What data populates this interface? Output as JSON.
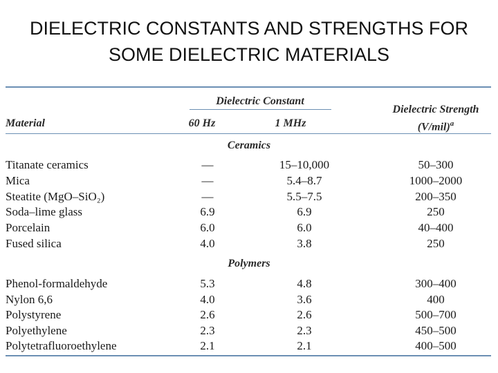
{
  "title": {
    "line1": "DIELECTRIC CONSTANTS AND STRENGTHS FOR",
    "line2": "SOME DIELECTRIC MATERIALS"
  },
  "table": {
    "group_header": "Dielectric Constant",
    "col_material": "Material",
    "col_60hz": "60 Hz",
    "col_1mhz": "1 MHz",
    "col_strength_line1": "Dielectric Strength",
    "col_strength_line2": "(V/mil)",
    "col_strength_sup": "a",
    "sections": [
      {
        "name": "Ceramics",
        "rows": [
          {
            "material": "Titanate ceramics",
            "hz60": "—",
            "mhz1": "15–10,000",
            "strength": "50–300"
          },
          {
            "material": "Mica",
            "hz60": "—",
            "mhz1": "5.4–8.7",
            "strength": "1000–2000"
          },
          {
            "material": "Steatite (MgO–SiO₂)",
            "hz60": "—",
            "mhz1": "5.5–7.5",
            "strength": "200–350"
          },
          {
            "material": "Soda–lime glass",
            "hz60": "6.9",
            "mhz1": "6.9",
            "strength": "250"
          },
          {
            "material": "Porcelain",
            "hz60": "6.0",
            "mhz1": "6.0",
            "strength": "40–400"
          },
          {
            "material": "Fused silica",
            "hz60": "4.0",
            "mhz1": "3.8",
            "strength": "250"
          }
        ]
      },
      {
        "name": "Polymers",
        "rows": [
          {
            "material": "Phenol-formaldehyde",
            "hz60": "5.3",
            "mhz1": "4.8",
            "strength": "300–400"
          },
          {
            "material": "Nylon 6,6",
            "hz60": "4.0",
            "mhz1": "3.6",
            "strength": "400"
          },
          {
            "material": "Polystyrene",
            "hz60": "2.6",
            "mhz1": "2.6",
            "strength": "500–700"
          },
          {
            "material": "Polyethylene",
            "hz60": "2.3",
            "mhz1": "2.3",
            "strength": "450–500"
          },
          {
            "material": "Polytetrafluoroethylene",
            "hz60": "2.1",
            "mhz1": "2.1",
            "strength": "400–500"
          }
        ]
      }
    ]
  }
}
